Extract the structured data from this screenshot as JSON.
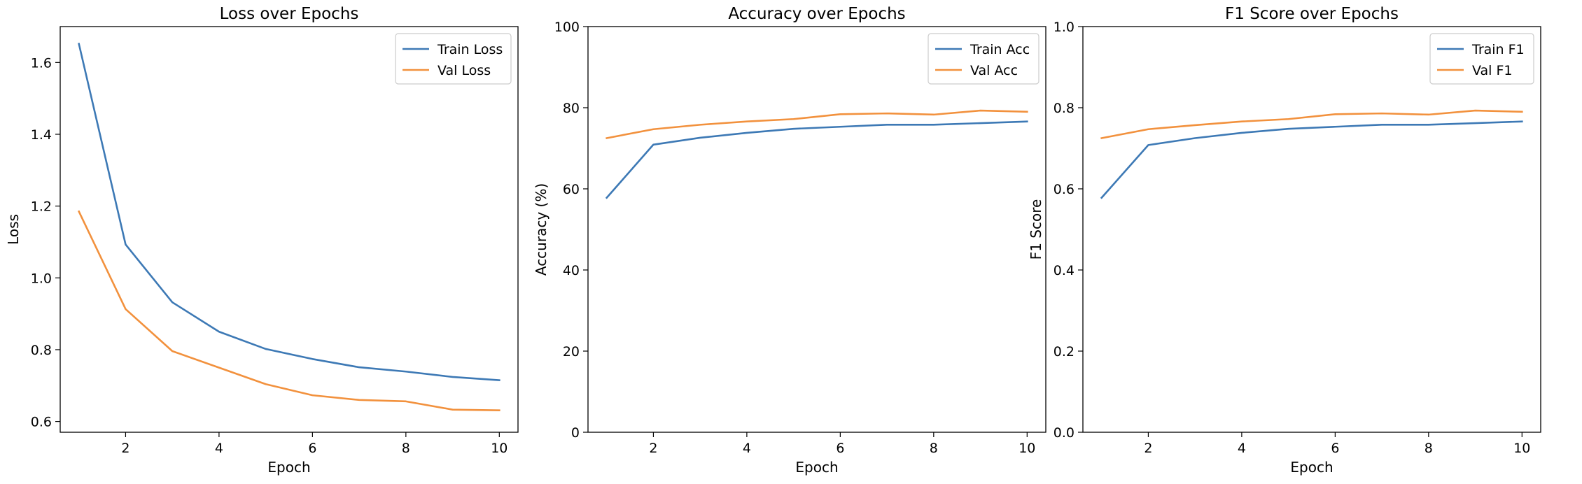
{
  "chart_data": [
    {
      "type": "line",
      "title": "Loss over Epochs",
      "xlabel": "Epoch",
      "ylabel": "Loss",
      "xlim": [
        0.6,
        10.4
      ],
      "ylim": [
        0.57,
        1.7
      ],
      "xticks": [
        2,
        4,
        6,
        8,
        10
      ],
      "yticks": [
        0.6,
        0.8,
        1.0,
        1.2,
        1.4,
        1.6
      ],
      "ytick_decimals": 1,
      "legend_position": "upper-right",
      "x": [
        1,
        2,
        3,
        4,
        5,
        6,
        7,
        8,
        9,
        10
      ],
      "series": [
        {
          "name": "Train Loss",
          "color": "#3d79b5",
          "values": [
            1.652,
            1.093,
            0.932,
            0.85,
            0.802,
            0.774,
            0.751,
            0.739,
            0.724,
            0.715
          ]
        },
        {
          "name": "Val Loss",
          "color": "#f2913d",
          "values": [
            1.185,
            0.913,
            0.796,
            0.75,
            0.704,
            0.673,
            0.66,
            0.656,
            0.633,
            0.631
          ]
        }
      ]
    },
    {
      "type": "line",
      "title": "Accuracy over Epochs",
      "xlabel": "Epoch",
      "ylabel": "Accuracy (%)",
      "xlim": [
        0.6,
        10.4
      ],
      "ylim": [
        0,
        100
      ],
      "xticks": [
        2,
        4,
        6,
        8,
        10
      ],
      "yticks": [
        0,
        20,
        40,
        60,
        80,
        100
      ],
      "ytick_decimals": 0,
      "legend_position": "upper-right",
      "x": [
        1,
        2,
        3,
        4,
        5,
        6,
        7,
        8,
        9,
        10
      ],
      "series": [
        {
          "name": "Train Acc",
          "color": "#3d79b5",
          "values": [
            57.8,
            70.9,
            72.6,
            73.8,
            74.8,
            75.3,
            75.8,
            75.8,
            76.2,
            76.6
          ]
        },
        {
          "name": "Val Acc",
          "color": "#f2913d",
          "values": [
            72.5,
            74.7,
            75.8,
            76.6,
            77.2,
            78.4,
            78.6,
            78.3,
            79.3,
            79.0
          ]
        }
      ]
    },
    {
      "type": "line",
      "title": "F1 Score over Epochs",
      "xlabel": "Epoch",
      "ylabel": "F1 Score",
      "xlim": [
        0.6,
        10.4
      ],
      "ylim": [
        0,
        1.0
      ],
      "xticks": [
        2,
        4,
        6,
        8,
        10
      ],
      "yticks": [
        0.0,
        0.2,
        0.4,
        0.6,
        0.8,
        1.0
      ],
      "ytick_decimals": 1,
      "legend_position": "upper-right",
      "x": [
        1,
        2,
        3,
        4,
        5,
        6,
        7,
        8,
        9,
        10
      ],
      "series": [
        {
          "name": "Train F1",
          "color": "#3d79b5",
          "values": [
            0.578,
            0.708,
            0.725,
            0.738,
            0.748,
            0.753,
            0.758,
            0.758,
            0.762,
            0.766
          ]
        },
        {
          "name": "Val F1",
          "color": "#f2913d",
          "values": [
            0.725,
            0.747,
            0.757,
            0.766,
            0.772,
            0.784,
            0.786,
            0.783,
            0.793,
            0.79
          ]
        }
      ]
    }
  ]
}
